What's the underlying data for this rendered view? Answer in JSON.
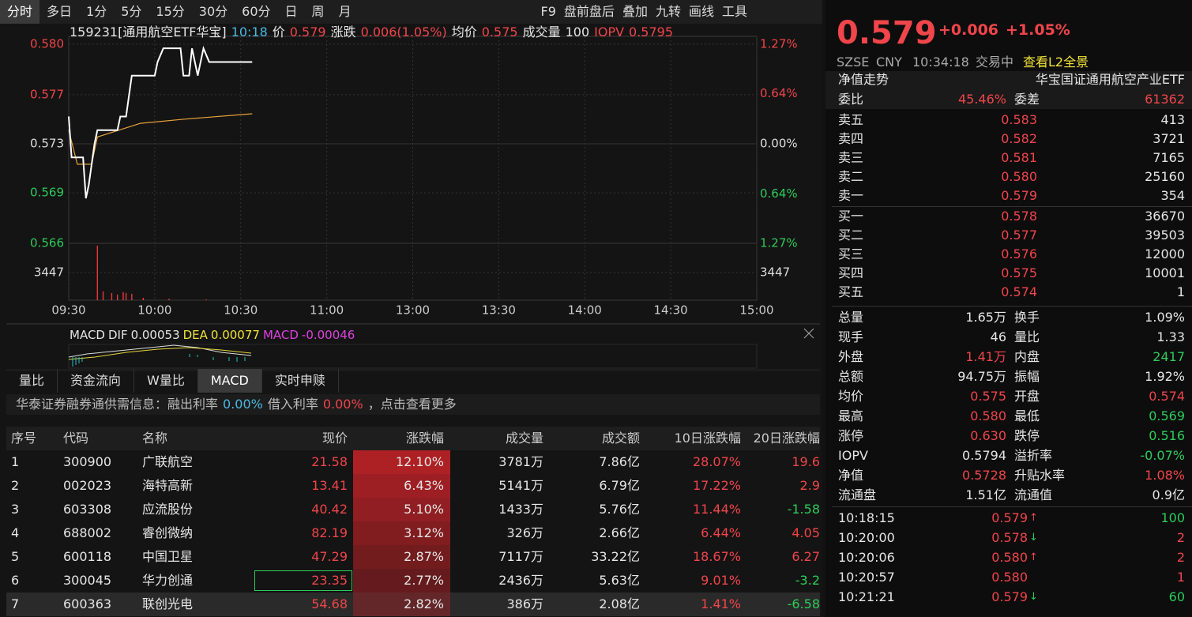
{
  "toolbar": {
    "periods": [
      "分时",
      "多日",
      "1分",
      "5分",
      "15分",
      "30分",
      "60分",
      "日",
      "周",
      "月"
    ],
    "tools": [
      "F9",
      "盘前盘后",
      "叠加",
      "九转",
      "画线",
      "工具"
    ]
  },
  "quote_line": {
    "security": "159231[通用航空ETF华宝]",
    "time": "10:18",
    "price_label": "价",
    "price": "0.579",
    "change_label": "涨跌",
    "change": "0.006(1.05%)",
    "avg_label": "均价",
    "avg": "0.575",
    "volume_label": "成交量",
    "volume": "100",
    "iopv_label": "IOPV",
    "iopv": "0.5795"
  },
  "intraday": {
    "ylim": [
      0.5657,
      0.5803
    ],
    "yticks": [
      {
        "value": 0.5803,
        "label": "0.580"
      },
      {
        "value": 0.5766,
        "label": "0.577"
      },
      {
        "value": 0.573,
        "label": "0.573"
      },
      {
        "value": 0.5694,
        "label": "0.569"
      },
      {
        "value": 0.5657,
        "label": "0.566"
      }
    ],
    "pct_lim": [
      -1.27,
      1.27
    ],
    "pct_ticks": [
      {
        "value": 1.27,
        "label": "1.27%"
      },
      {
        "value": 0.64,
        "label": "0.64%"
      },
      {
        "value": 0,
        "label": "0.00%"
      },
      {
        "value": -0.64,
        "label": "0.64%"
      },
      {
        "value": -1.27,
        "label": "1.27%"
      }
    ],
    "vol_lim": [
      0,
      6894
    ],
    "vol_ticks": [
      3447
    ],
    "time_ticks": [
      "09:30",
      "10:00",
      "10:30",
      "11:00",
      "13:00",
      "13:30",
      "14:00",
      "14:30",
      "15:00"
    ],
    "price": {
      "color": "#ffffff",
      "x": [
        "09:30",
        "09:31",
        "09:35",
        "09:36",
        "09:37",
        "09:39",
        "09:40",
        "09:47",
        "09:48",
        "09:50",
        "09:52",
        "09:53",
        "10:00",
        "10:01",
        "10:03",
        "10:04",
        "10:09",
        "10:10",
        "10:12",
        "10:13",
        "10:15",
        "10:17",
        "10:19",
        "10:20",
        "10:29",
        "10:34"
      ],
      "values": [
        0.575,
        0.572,
        0.572,
        0.569,
        0.57,
        0.573,
        0.574,
        0.574,
        0.575,
        0.575,
        0.578,
        0.578,
        0.578,
        0.579,
        0.58,
        0.58,
        0.58,
        0.578,
        0.578,
        0.58,
        0.578,
        0.58,
        0.579,
        0.579,
        0.579,
        0.579
      ]
    },
    "average": {
      "color": "#e8a33a",
      "x": [
        "09:30",
        "09:33",
        "09:38",
        "09:40",
        "09:55",
        "10:10",
        "10:34"
      ],
      "values": [
        0.574,
        0.5715,
        0.5715,
        0.5735,
        0.5745,
        0.5748,
        0.5752
      ]
    },
    "volume": {
      "color": "#e8383d",
      "x": [
        "09:40",
        "09:42",
        "09:45",
        "09:47",
        "09:49",
        "09:50",
        "09:52",
        "09:56",
        "10:05",
        "10:18"
      ],
      "values": [
        6800,
        1100,
        900,
        700,
        1000,
        900,
        800,
        300,
        200,
        100
      ]
    }
  },
  "macd": {
    "title": "MACD",
    "dif_label": "DIF",
    "dif": "0.00053",
    "dea_label": "DEA",
    "dea": "0.00077",
    "macd_label": "MACD",
    "macd": "-0.00046"
  },
  "tabs": [
    "量比",
    "资金流向",
    "W量比",
    "MACD",
    "实时申赎"
  ],
  "notice": {
    "text": "华泰证券融券通供需信息：融出利率",
    "rate1": "0.00%",
    "mid": "借入利率",
    "rate2": "0.00%",
    "tail": "，点击查看更多"
  },
  "table": {
    "headers": [
      "序号",
      "代码",
      "名称",
      "现价",
      "涨跌幅",
      "成交量",
      "成交额",
      "10日涨跌幅",
      "20日涨跌幅"
    ],
    "rows": [
      [
        "1",
        "300900",
        "广联航空",
        "21.58",
        "12.10%",
        "3781万",
        "7.86亿",
        "28.07%",
        "19.6"
      ],
      [
        "2",
        "002023",
        "海特高新",
        "13.41",
        "6.43%",
        "5141万",
        "6.79亿",
        "17.22%",
        "2.9"
      ],
      [
        "3",
        "603308",
        "应流股份",
        "40.42",
        "5.10%",
        "1433万",
        "5.76亿",
        "11.44%",
        "-1.58"
      ],
      [
        "4",
        "688002",
        "睿创微纳",
        "82.19",
        "3.12%",
        "326万",
        "2.66亿",
        "6.44%",
        "4.05"
      ],
      [
        "5",
        "600118",
        "中国卫星",
        "47.29",
        "2.87%",
        "7117万",
        "33.22亿",
        "18.67%",
        "6.27"
      ],
      [
        "6",
        "300045",
        "华力创通",
        "23.35",
        "2.77%",
        "2436万",
        "5.63亿",
        "9.01%",
        "-3.2"
      ],
      [
        "7",
        "600363",
        "联创光电",
        "54.68",
        "2.82%",
        "386万",
        "2.08亿",
        "1.41%",
        "-6.58"
      ]
    ]
  },
  "quote": {
    "price": "0.579",
    "change": "+0.006",
    "change_pct": "+1.05%",
    "exchange": "SZSE",
    "currency": "CNY",
    "time": "10:34:18",
    "status": "交易中",
    "l2": "查看L2全景",
    "nav_trend": "净值走势",
    "fund_name": "华宝国证通用航空产业ETF",
    "weibi_label": "委比",
    "weibi": "45.46%",
    "weicha_label": "委差",
    "weicha": "61362",
    "asks": [
      [
        "卖五",
        "0.583",
        "413"
      ],
      [
        "卖四",
        "0.582",
        "3721"
      ],
      [
        "卖三",
        "0.581",
        "7165"
      ],
      [
        "卖二",
        "0.580",
        "25160"
      ],
      [
        "卖一",
        "0.579",
        "354"
      ]
    ],
    "bids": [
      [
        "买一",
        "0.578",
        "36670"
      ],
      [
        "买二",
        "0.577",
        "39503"
      ],
      [
        "买三",
        "0.576",
        "12000"
      ],
      [
        "买四",
        "0.575",
        "10001"
      ],
      [
        "买五",
        "0.574",
        "1"
      ]
    ],
    "stats": [
      [
        "总量",
        "1.65万",
        "换手",
        "1.09%"
      ],
      [
        "现手",
        "46",
        "量比",
        "1.33"
      ],
      [
        "外盘",
        "1.41万",
        "内盘",
        "2417"
      ],
      [
        "总额",
        "94.75万",
        "振幅",
        "1.92%"
      ],
      [
        "均价",
        "0.575",
        "开盘",
        "0.574"
      ],
      [
        "最高",
        "0.580",
        "最低",
        "0.569"
      ],
      [
        "涨停",
        "0.630",
        "跌停",
        "0.516"
      ],
      [
        "IOPV",
        "0.5794",
        "溢折率",
        "-0.07%"
      ],
      [
        "净值",
        "0.5728",
        "升贴水率",
        "1.08%"
      ],
      [
        "流通盘",
        "1.51亿",
        "流通值",
        "0.9亿"
      ]
    ],
    "trades": [
      [
        "10:18:15",
        "0.579",
        "100",
        "up"
      ],
      [
        "10:20:00",
        "0.578",
        "2",
        "down"
      ],
      [
        "10:20:06",
        "0.580",
        "2",
        "up"
      ],
      [
        "10:20:57",
        "0.580",
        "1",
        null
      ],
      [
        "10:21:21",
        "0.579",
        "60",
        "down"
      ]
    ]
  }
}
